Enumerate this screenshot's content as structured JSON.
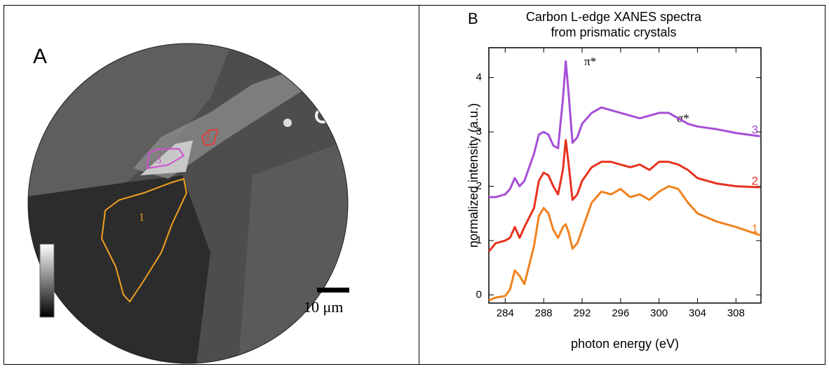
{
  "panel_a": {
    "label": "A",
    "regions": [
      "1",
      "2",
      "3"
    ],
    "scale_bar": "10 μm"
  },
  "chart_data": {
    "type": "line",
    "panel_label": "B",
    "title": [
      "Carbon L-edge XANES spectra",
      "from prismatic crystals"
    ],
    "x_label": "photon energy (eV)",
    "y_label": "normalized intensity (a.u.)",
    "annotations": [
      "π*",
      "σ*"
    ],
    "x": [
      282.3,
      283,
      284,
      284.5,
      285,
      285.5,
      286,
      287,
      287.5,
      288,
      288.5,
      289,
      289.5,
      290,
      290.3,
      290.6,
      291,
      291.5,
      292,
      293,
      294,
      295,
      296,
      297,
      298,
      299,
      300,
      301,
      302,
      303,
      304,
      306,
      308,
      310.5
    ],
    "series": [
      {
        "name": "1",
        "color": "#f0821e",
        "values": [
          -0.1,
          -0.05,
          -0.02,
          0.1,
          0.45,
          0.35,
          0.2,
          0.9,
          1.45,
          1.6,
          1.5,
          1.2,
          1.05,
          1.25,
          1.3,
          1.15,
          0.85,
          0.95,
          1.2,
          1.7,
          1.9,
          1.85,
          1.95,
          1.8,
          1.85,
          1.75,
          1.9,
          2.0,
          1.95,
          1.7,
          1.5,
          1.35,
          1.25,
          1.1
        ]
      },
      {
        "name": "2",
        "color": "#e8321e",
        "values": [
          0.8,
          0.95,
          1.0,
          1.05,
          1.25,
          1.05,
          1.25,
          1.6,
          2.1,
          2.25,
          2.2,
          2.0,
          1.85,
          2.3,
          2.85,
          2.4,
          1.75,
          1.85,
          2.1,
          2.35,
          2.45,
          2.45,
          2.4,
          2.35,
          2.4,
          2.3,
          2.45,
          2.45,
          2.4,
          2.3,
          2.15,
          2.05,
          2.0,
          1.98
        ]
      },
      {
        "name": "3",
        "color": "#a64fd6",
        "values": [
          1.8,
          1.8,
          1.85,
          1.95,
          2.15,
          2.0,
          2.1,
          2.6,
          2.95,
          3.0,
          2.95,
          2.75,
          2.7,
          3.6,
          4.3,
          3.7,
          2.8,
          2.9,
          3.15,
          3.35,
          3.45,
          3.4,
          3.35,
          3.3,
          3.25,
          3.3,
          3.35,
          3.35,
          3.25,
          3.15,
          3.1,
          3.05,
          2.98,
          2.92
        ]
      }
    ],
    "xlim": [
      282.3,
      310.6
    ],
    "ylim": [
      -0.15,
      4.55
    ],
    "xticks": [
      284,
      288,
      292,
      296,
      300,
      304,
      308
    ],
    "yticks": [
      0,
      1,
      2,
      3,
      4
    ]
  }
}
